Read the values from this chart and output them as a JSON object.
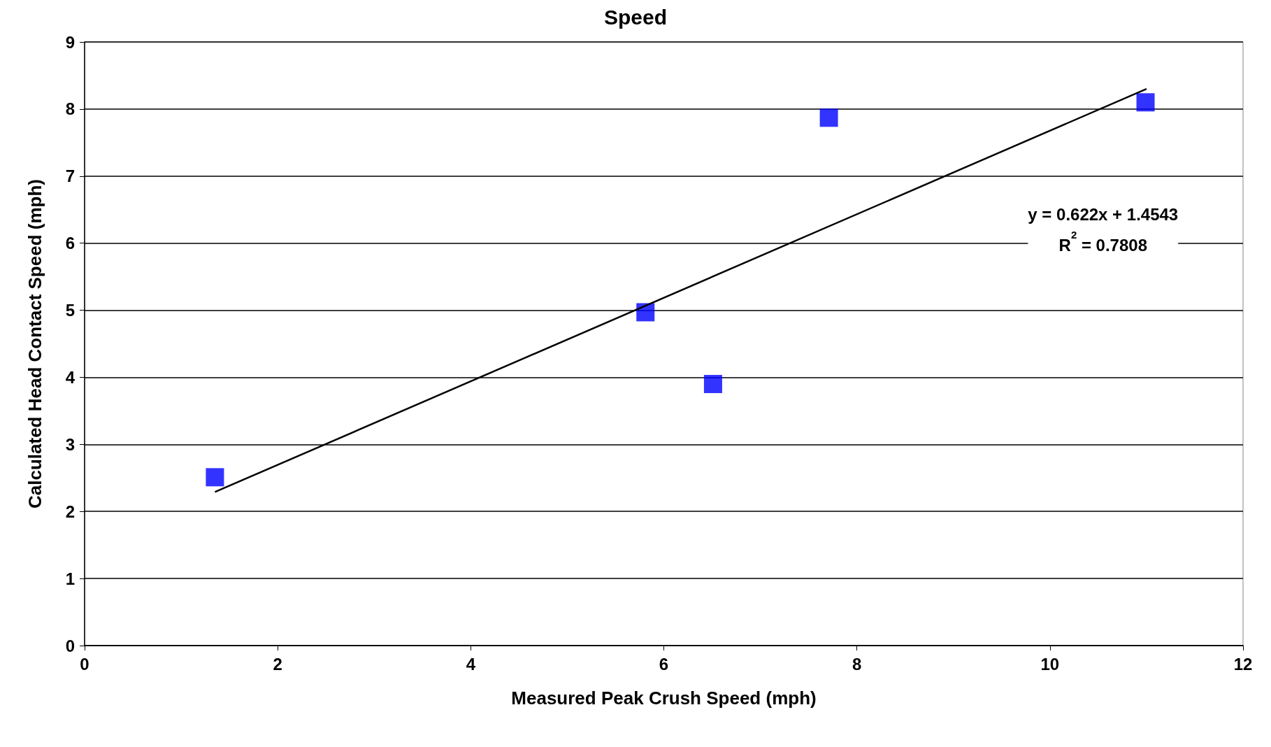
{
  "chart_data": {
    "type": "scatter",
    "title": "Speed",
    "xlabel": "Measured Peak Crush Speed (mph)",
    "ylabel": "Calculated Head Contact Speed (mph)",
    "series": [
      {
        "color": "#0000ff",
        "marker": "square",
        "x": [
          1.35,
          5.81,
          6.51,
          7.71,
          10.99
        ],
        "values": [
          2.51,
          4.97,
          3.9,
          7.87,
          8.1
        ]
      },
      {
        "type": "line",
        "color": "#000000",
        "line_style": "solid",
        "marker": "none",
        "x": [
          1.35,
          11
        ],
        "values": [
          2.29,
          8.3
        ]
      }
    ],
    "xlim": [
      0,
      12
    ],
    "xticks": [
      0,
      2,
      4,
      6,
      8,
      10,
      12
    ],
    "ylim": [
      0,
      9
    ],
    "yticks": [
      0,
      1,
      2,
      3,
      4,
      5,
      6,
      7,
      8,
      9
    ],
    "grid": "y",
    "annotations": [
      "y = 0.622x + 1.4543",
      "R$^{2}$ = 0.7808"
    ]
  }
}
